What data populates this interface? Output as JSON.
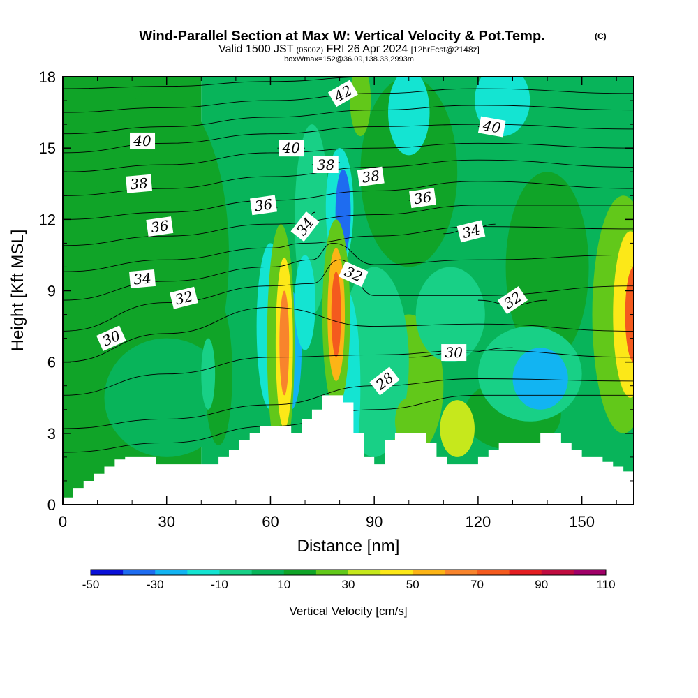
{
  "header": {
    "title_main": "Wind-Parallel Section at Max W: Vertical Velocity & Pot.Temp.",
    "title_mark": "(C)",
    "valid_a": "Valid 1500 JST",
    "valid_b": "(0600Z)",
    "valid_c": "FRI 26 Apr 2024",
    "valid_d": "[12hrFcst@2148z]",
    "box_line": "boxWmax=152@36.09,138.33,2993m"
  },
  "chart_data": {
    "type": "heatmap",
    "xlabel": "Distance [nm]",
    "ylabel": "Height [Kft MSL]",
    "xlim": [
      0,
      165
    ],
    "ylim": [
      0,
      18
    ],
    "x_ticks": [
      "0",
      "30",
      "60",
      "90",
      "120",
      "150"
    ],
    "y_ticks": [
      "0",
      "3",
      "6",
      "9",
      "12",
      "15",
      "18"
    ],
    "colorbar": {
      "label": "Vertical Velocity [cm/s]",
      "tick_labels": [
        "-50",
        "-30",
        "-10",
        "10",
        "30",
        "50",
        "70",
        "90",
        "110"
      ],
      "levels": [
        -50,
        -40,
        -30,
        -20,
        -10,
        0,
        10,
        20,
        30,
        40,
        50,
        60,
        70,
        80,
        90,
        100,
        110
      ],
      "colors": [
        "#0a10d8",
        "#1e6cf0",
        "#12b4f2",
        "#14e4d2",
        "#18d086",
        "#08b45a",
        "#10a428",
        "#62c81a",
        "#c6e81c",
        "#fce818",
        "#fcb416",
        "#f8842c",
        "#f45a1e",
        "#e41e22",
        "#c00c40",
        "#a00068"
      ]
    },
    "terrain": {
      "x": [
        0,
        3,
        6,
        9,
        12,
        15,
        18,
        21,
        24,
        27,
        30,
        33,
        36,
        39,
        42,
        45,
        48,
        51,
        54,
        57,
        60,
        63,
        66,
        69,
        72,
        75,
        78,
        81,
        84,
        87,
        90,
        93,
        96,
        99,
        102,
        105,
        108,
        111,
        114,
        117,
        120,
        123,
        126,
        129,
        132,
        135,
        138,
        141,
        144,
        147,
        150,
        153,
        156,
        159,
        162,
        165
      ],
      "height": [
        0.3,
        0.7,
        1.0,
        1.3,
        1.6,
        1.9,
        2.0,
        2.0,
        2.0,
        1.7,
        1.7,
        1.7,
        1.7,
        1.7,
        1.7,
        2.0,
        2.3,
        2.7,
        3.0,
        3.3,
        3.3,
        3.3,
        3.0,
        3.6,
        4.0,
        4.6,
        4.6,
        4.3,
        3.0,
        2.0,
        1.7,
        2.7,
        3.0,
        3.0,
        3.0,
        2.6,
        2.0,
        1.7,
        1.7,
        1.7,
        2.0,
        2.3,
        2.6,
        2.6,
        2.6,
        2.6,
        3.0,
        3.0,
        2.6,
        2.3,
        2.0,
        2.0,
        1.8,
        1.6,
        1.4,
        1.3
      ]
    },
    "w_background": [
      {
        "x": [
          0,
          40
        ],
        "y": [
          0,
          18
        ],
        "value": 12
      },
      {
        "x": [
          40,
          165
        ],
        "y": [
          0,
          18
        ],
        "value": 5
      }
    ],
    "w_cells": [
      {
        "cx": 28,
        "cy": 10.5,
        "rx": 20,
        "ry": 7,
        "value": 15
      },
      {
        "cx": 30,
        "cy": 4.5,
        "rx": 18,
        "ry": 2.5,
        "value": 5
      },
      {
        "cx": 100,
        "cy": 14,
        "rx": 14,
        "ry": 4,
        "value": 15
      },
      {
        "cx": 140,
        "cy": 10,
        "rx": 12,
        "ry": 4,
        "value": 15
      },
      {
        "cx": 130,
        "cy": 3.8,
        "rx": 14,
        "ry": 1.5,
        "value": 15
      },
      {
        "cx": 45,
        "cy": 5.5,
        "rx": 4,
        "ry": 3,
        "value": 15
      },
      {
        "cx": 100,
        "cy": 5,
        "rx": 10,
        "ry": 3,
        "value": 20
      },
      {
        "cx": 90,
        "cy": 6,
        "rx": 10,
        "ry": 4,
        "value": -5
      },
      {
        "cx": 112,
        "cy": 8,
        "rx": 10,
        "ry": 2,
        "value": -5
      },
      {
        "cx": 100,
        "cy": 16.5,
        "rx": 6,
        "ry": 1.8,
        "value": -15
      },
      {
        "cx": 127,
        "cy": 17,
        "rx": 8,
        "ry": 1.5,
        "value": -15
      },
      {
        "cx": 72,
        "cy": 12,
        "rx": 5,
        "ry": 4,
        "value": -10
      },
      {
        "cx": 135,
        "cy": 5.5,
        "rx": 15,
        "ry": 2,
        "value": -10
      },
      {
        "cx": 138,
        "cy": 5.3,
        "rx": 8,
        "ry": 1.3,
        "value": -30
      },
      {
        "cx": 114,
        "cy": 3.2,
        "rx": 5,
        "ry": 1.2,
        "value": 30
      },
      {
        "cx": 100,
        "cy": 3.5,
        "rx": 4,
        "ry": 1,
        "value": 25
      },
      {
        "cx": 60,
        "cy": 7.5,
        "rx": 4,
        "ry": 3.5,
        "value": -15
      },
      {
        "cx": 42,
        "cy": 5.5,
        "rx": 2,
        "ry": 1.5,
        "value": -10
      },
      {
        "cx": 66,
        "cy": 6.5,
        "rx": 3,
        "ry": 2.5,
        "value": -25
      },
      {
        "cx": 70,
        "cy": 8.5,
        "rx": 3,
        "ry": 2,
        "value": -15
      },
      {
        "cx": 82,
        "cy": 5,
        "rx": 4,
        "ry": 4,
        "value": -15
      },
      {
        "cx": 80,
        "cy": 12.5,
        "rx": 4,
        "ry": 2.5,
        "value": -20
      },
      {
        "cx": 81,
        "cy": 12.3,
        "rx": 2.2,
        "ry": 1.8,
        "value": -40
      },
      {
        "cx": 63,
        "cy": 6.8,
        "rx": 4,
        "ry": 5,
        "value": 25
      },
      {
        "cx": 64,
        "cy": 6.8,
        "rx": 2.5,
        "ry": 3.6,
        "value": 45
      },
      {
        "cx": 64,
        "cy": 6.8,
        "rx": 1.4,
        "ry": 2.2,
        "value": 65
      },
      {
        "cx": 79,
        "cy": 8,
        "rx": 4,
        "ry": 4,
        "value": 25
      },
      {
        "cx": 79,
        "cy": 8,
        "rx": 2.5,
        "ry": 2.8,
        "value": 55
      },
      {
        "cx": 79,
        "cy": 8,
        "rx": 1.4,
        "ry": 1.8,
        "value": 75
      },
      {
        "cx": 86,
        "cy": 17,
        "rx": 3,
        "ry": 1.5,
        "value": 25
      },
      {
        "cx": 162,
        "cy": 8,
        "rx": 9,
        "ry": 5,
        "value": 20
      },
      {
        "cx": 164,
        "cy": 8,
        "rx": 5,
        "ry": 3.5,
        "value": 45
      },
      {
        "cx": 165,
        "cy": 8,
        "rx": 2.5,
        "ry": 2,
        "value": 75
      }
    ],
    "theta_contours": [
      {
        "level": 28,
        "points": [
          [
            0,
            2.2
          ],
          [
            30,
            2.6
          ],
          [
            60,
            3.3
          ],
          [
            90,
            4.0
          ],
          [
            120,
            4.6
          ],
          [
            165,
            4.6
          ]
        ],
        "label": "28",
        "label_at": [
          93,
          5.2
        ],
        "label_rot": -38
      },
      {
        "level": 29,
        "points": [
          [
            0,
            3.2
          ],
          [
            30,
            3.6
          ],
          [
            60,
            4.2
          ],
          [
            90,
            5.0
          ],
          [
            120,
            5.3
          ],
          [
            165,
            5.2
          ]
        ]
      },
      {
        "level": 30,
        "points": [
          [
            0,
            4.6
          ],
          [
            30,
            5.5
          ],
          [
            60,
            6.2
          ],
          [
            90,
            6.3
          ],
          [
            120,
            6.5
          ],
          [
            165,
            6.2
          ]
        ],
        "label": "30",
        "label_at": [
          14,
          7.0
        ],
        "label_rot": -24
      },
      {
        "level": 30,
        "points": [
          [
            100,
            6.2
          ],
          [
            115,
            6.4
          ],
          [
            130,
            6.6
          ]
        ],
        "label": "30",
        "label_at": [
          113,
          6.4
        ],
        "label_rot": 0
      },
      {
        "level": 31,
        "points": [
          [
            0,
            6.0
          ],
          [
            30,
            7.2
          ],
          [
            60,
            8.3
          ],
          [
            90,
            7.5
          ],
          [
            120,
            7.6
          ],
          [
            165,
            7.3
          ]
        ]
      },
      {
        "level": 32,
        "points": [
          [
            0,
            7.3
          ],
          [
            30,
            8.5
          ],
          [
            60,
            9.2
          ],
          [
            72,
            9.3
          ],
          [
            80,
            10.3
          ],
          [
            90,
            8.8
          ],
          [
            120,
            8.8
          ],
          [
            165,
            9.2
          ]
        ],
        "label": "32",
        "label_at": [
          35,
          8.7
        ],
        "label_rot": -14
      },
      {
        "level": 32,
        "points": [
          [
            120,
            8.6
          ],
          [
            130,
            8.4
          ],
          [
            140,
            8.6
          ]
        ],
        "label": "32",
        "label_at": [
          130,
          8.6
        ],
        "label_rot": -34
      },
      {
        "level": 32,
        "points": [
          [
            82,
            10.0
          ],
          [
            84,
            9.8
          ],
          [
            86,
            9.6
          ]
        ],
        "label": "32",
        "label_at": [
          84,
          9.7
        ],
        "label_rot": 24
      },
      {
        "level": 33,
        "points": [
          [
            0,
            8.6
          ],
          [
            30,
            9.4
          ],
          [
            60,
            10.0
          ],
          [
            72,
            10.3
          ],
          [
            78,
            11.0
          ],
          [
            90,
            10.1
          ],
          [
            120,
            10.3
          ],
          [
            165,
            10.5
          ]
        ]
      },
      {
        "level": 34,
        "points": [
          [
            0,
            9.8
          ],
          [
            30,
            10.3
          ],
          [
            60,
            10.8
          ],
          [
            70,
            11.0
          ],
          [
            90,
            11.3
          ],
          [
            120,
            11.7
          ],
          [
            165,
            11.6
          ]
        ],
        "label": "34",
        "label_at": [
          23,
          9.5
        ],
        "label_rot": -5
      },
      {
        "level": 34,
        "points": [
          [
            110,
            11.4
          ],
          [
            118,
            11.6
          ],
          [
            125,
            11.8
          ]
        ],
        "label": "34",
        "label_at": [
          118,
          11.5
        ],
        "label_rot": -14
      },
      {
        "level": 34,
        "points": [
          [
            68,
            11.8
          ],
          [
            70,
            12.0
          ],
          [
            73,
            12.3
          ]
        ],
        "label": "34",
        "label_at": [
          70,
          11.7
        ],
        "label_rot": -52
      },
      {
        "level": 35,
        "points": [
          [
            0,
            10.9
          ],
          [
            30,
            11.3
          ],
          [
            60,
            11.8
          ],
          [
            90,
            12.2
          ],
          [
            120,
            12.6
          ],
          [
            165,
            12.6
          ]
        ]
      },
      {
        "level": 36,
        "points": [
          [
            0,
            12.0
          ],
          [
            30,
            12.3
          ],
          [
            60,
            12.8
          ],
          [
            90,
            13.2
          ],
          [
            120,
            13.6
          ],
          [
            165,
            13.3
          ]
        ],
        "label": "36",
        "label_at": [
          28,
          11.7
        ],
        "label_rot": -8
      },
      {
        "level": 36,
        "points": [
          [
            58,
            12.6
          ],
          [
            60,
            12.6
          ],
          [
            62,
            12.5
          ]
        ],
        "label": "36",
        "label_at": [
          58,
          12.6
        ],
        "label_rot": -8
      },
      {
        "level": 36,
        "points": [
          [
            100,
            12.8
          ],
          [
            103,
            12.8
          ],
          [
            106,
            12.8
          ]
        ],
        "label": "36",
        "label_at": [
          104,
          12.9
        ],
        "label_rot": -8
      },
      {
        "level": 37,
        "points": [
          [
            0,
            13.0
          ],
          [
            30,
            13.3
          ],
          [
            60,
            13.8
          ],
          [
            90,
            14.2
          ],
          [
            120,
            14.5
          ],
          [
            165,
            14.2
          ]
        ]
      },
      {
        "level": 38,
        "points": [
          [
            0,
            14.0
          ],
          [
            30,
            14.3
          ],
          [
            60,
            14.8
          ],
          [
            90,
            15.0
          ],
          [
            120,
            15.2
          ],
          [
            165,
            15.0
          ]
        ],
        "label": "38",
        "label_at": [
          22,
          13.5
        ],
        "label_rot": -5
      },
      {
        "level": 38,
        "points": [
          [
            72,
            14.3
          ],
          [
            76,
            14.3
          ],
          [
            80,
            14.4
          ]
        ],
        "label": "38",
        "label_at": [
          76,
          14.3
        ],
        "label_rot": 0
      },
      {
        "level": 38,
        "points": [
          [
            85,
            13.7
          ],
          [
            88,
            13.8
          ],
          [
            91,
            13.9
          ]
        ],
        "label": "38",
        "label_at": [
          89,
          13.8
        ],
        "label_rot": -8
      },
      {
        "level": 39,
        "points": [
          [
            0,
            14.8
          ],
          [
            30,
            15.2
          ],
          [
            60,
            15.6
          ],
          [
            90,
            15.9
          ],
          [
            120,
            16.0
          ],
          [
            165,
            15.8
          ]
        ]
      },
      {
        "level": 40,
        "points": [
          [
            0,
            15.6
          ],
          [
            30,
            15.9
          ],
          [
            60,
            16.3
          ],
          [
            90,
            16.6
          ],
          [
            120,
            16.8
          ],
          [
            165,
            16.6
          ]
        ],
        "label": "40",
        "label_at": [
          23,
          15.3
        ],
        "label_rot": 0
      },
      {
        "level": 40,
        "points": [
          [
            62,
            15.0
          ],
          [
            66,
            15.0
          ],
          [
            70,
            15.0
          ]
        ],
        "label": "40",
        "label_at": [
          66,
          15.0
        ],
        "label_rot": 0
      },
      {
        "level": 40,
        "points": [
          [
            120,
            15.9
          ],
          [
            124,
            15.9
          ],
          [
            128,
            16.0
          ]
        ],
        "label": "40",
        "label_at": [
          124,
          15.9
        ],
        "label_rot": 10
      },
      {
        "level": 41,
        "points": [
          [
            0,
            16.5
          ],
          [
            30,
            16.7
          ],
          [
            60,
            17.0
          ],
          [
            90,
            17.3
          ],
          [
            120,
            17.5
          ],
          [
            165,
            17.3
          ]
        ]
      },
      {
        "level": 42,
        "points": [
          [
            0,
            17.5
          ],
          [
            30,
            17.6
          ],
          [
            60,
            17.8
          ],
          [
            90,
            18.0
          ],
          [
            120,
            18.0
          ],
          [
            165,
            18.0
          ]
        ],
        "label": "42",
        "label_at": [
          81,
          17.3
        ],
        "label_rot": -30
      }
    ]
  }
}
